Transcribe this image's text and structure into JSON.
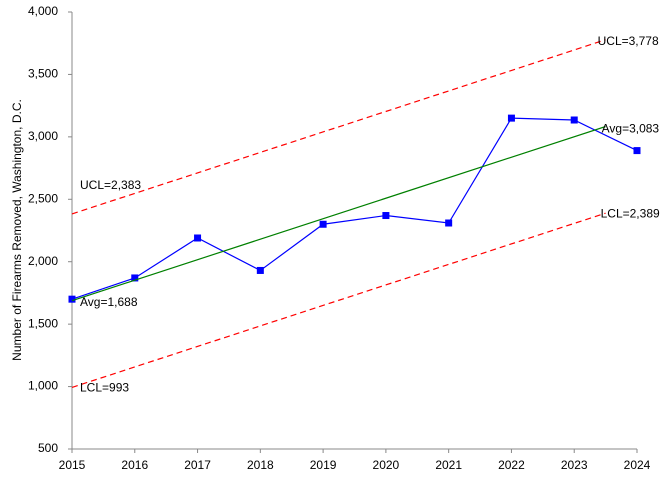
{
  "chart_data": {
    "type": "line",
    "y_axis_label": "Number of Firearms Removed, Washington, D.C.",
    "x": [
      2015,
      2016,
      2017,
      2018,
      2019,
      2020,
      2021,
      2022,
      2023,
      2024
    ],
    "series": [
      {
        "color": "#0000ff",
        "marker": "square",
        "values": [
          1700,
          1870,
          2190,
          1930,
          2300,
          2370,
          2310,
          3150,
          3135,
          2890
        ]
      },
      {
        "color": "#008000",
        "x": [
          2015,
          2023.5
        ],
        "values": [
          1688,
          3083
        ],
        "value_labels": [
          "Avg=1,688",
          "Avg=3,083"
        ]
      },
      {
        "color": "#ff0000",
        "dashed": true,
        "x": [
          2015,
          2023.5
        ],
        "values": [
          2383,
          3778
        ],
        "value_labels": [
          "UCL=2,383",
          "UCL=3,778"
        ]
      },
      {
        "color": "#ff0000",
        "dashed": true,
        "x": [
          2015,
          2023.5
        ],
        "values": [
          993,
          2389
        ],
        "value_labels": [
          "LCL=993",
          "LCL=2,389"
        ]
      }
    ],
    "xlim": [
      2015,
      2024
    ],
    "xticks": [
      2015,
      2016,
      2017,
      2018,
      2019,
      2020,
      2021,
      2022,
      2023,
      2024
    ],
    "ylim": [
      500,
      4000
    ],
    "yticks": [
      {
        "value": 500,
        "label": "500"
      },
      {
        "value": 1000,
        "label": "1,000"
      },
      {
        "value": 1500,
        "label": "1,500"
      },
      {
        "value": 2000,
        "label": "2,000"
      },
      {
        "value": 2500,
        "label": "2,500"
      },
      {
        "value": 3000,
        "label": "3,000"
      },
      {
        "value": 3500,
        "label": "3,500"
      },
      {
        "value": 4000,
        "label": "4,000"
      }
    ],
    "grid": false
  }
}
